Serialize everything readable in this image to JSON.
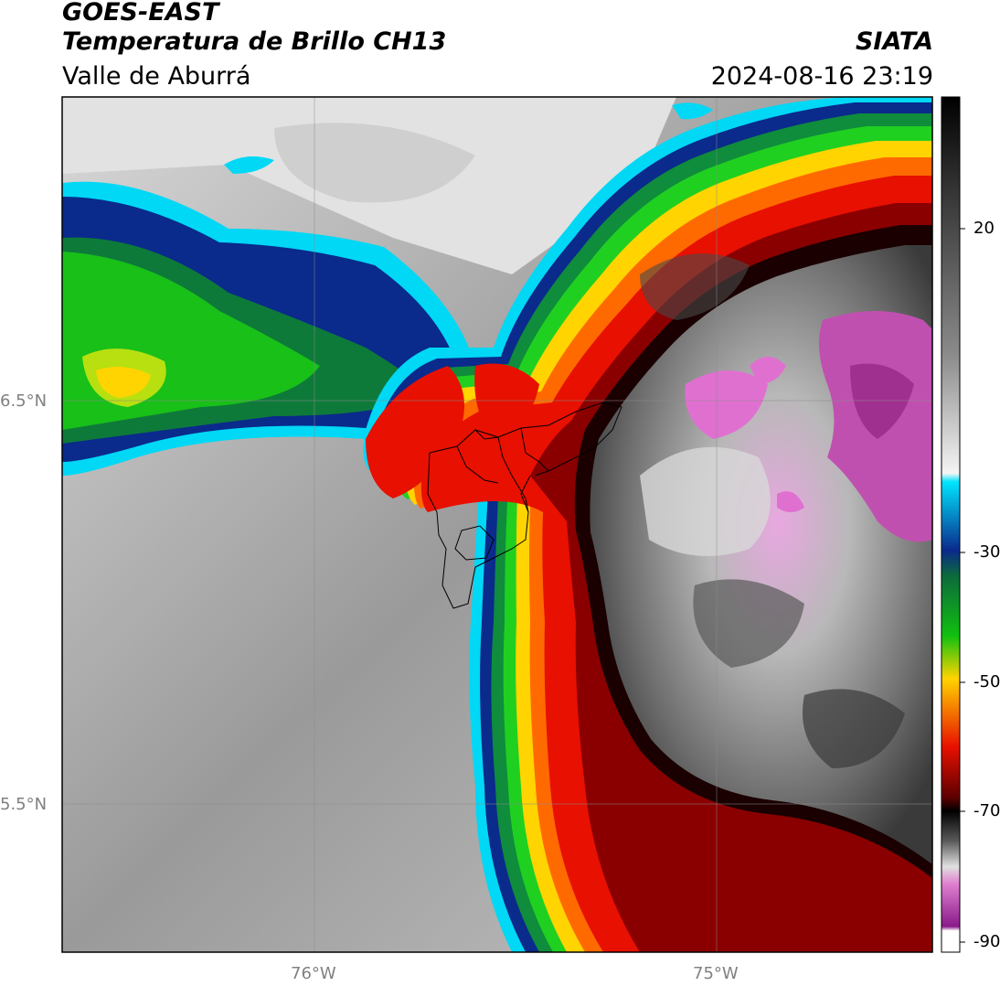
{
  "header": {
    "satellite": "GOES-EAST",
    "product": "Temperatura de Brillo CH13",
    "region": "Valle de Aburrá",
    "agency": "SIATA",
    "datetime": "2024-08-16 23:19"
  },
  "map": {
    "latitude_labels": [
      "6.5°N",
      "5.5°N"
    ],
    "longitude_labels": [
      "76°W",
      "75°W"
    ],
    "outline": "municipality boundaries of the Aburrá valley",
    "gridlines": true
  },
  "colorbar": {
    "tick_labels": [
      "20",
      "-30",
      "-50",
      "-70",
      "-90"
    ],
    "colors": {
      "warm_gray": "#7f7f7f",
      "cyan": "#00e5ff",
      "blue": "#0a2a8c",
      "green": "#10c010",
      "yellow": "#ffd400",
      "red": "#e81000",
      "dark_red": "#5a0000",
      "black": "#0a0a0a",
      "magenta": "#d060c0"
    }
  }
}
